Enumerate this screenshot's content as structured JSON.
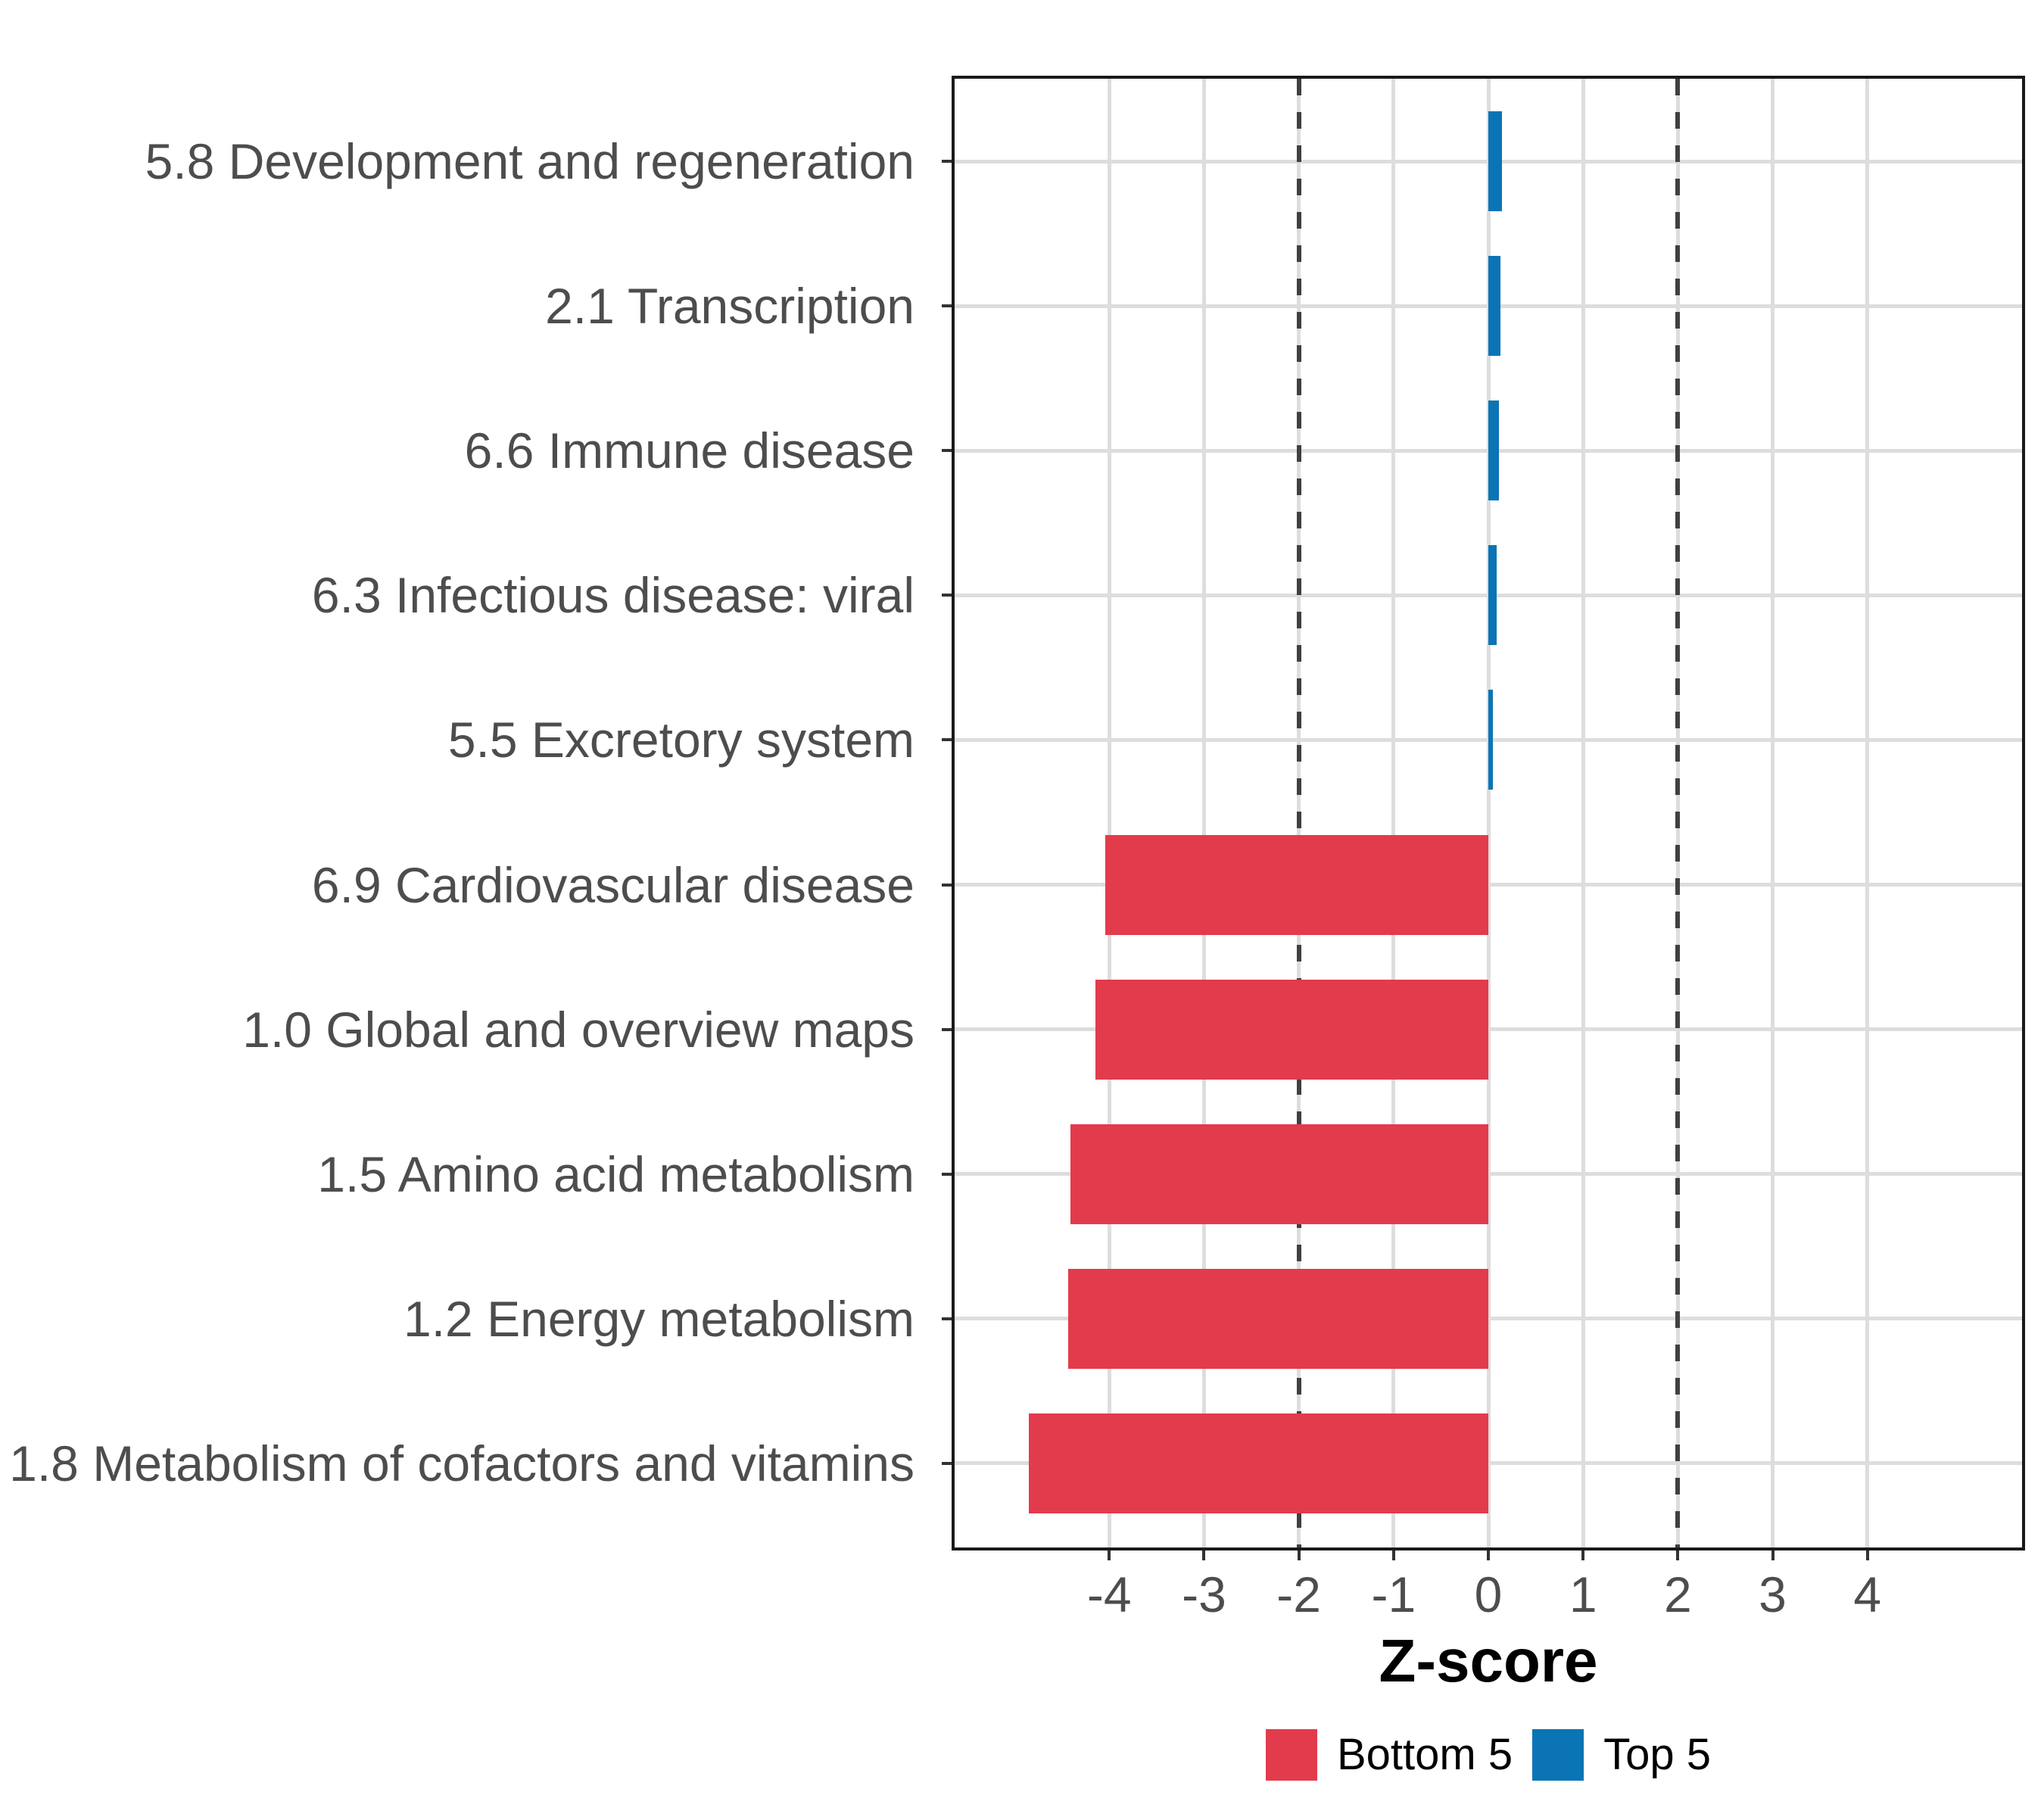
{
  "chart_data": {
    "type": "bar",
    "orientation": "horizontal",
    "xlabel": "Z-score",
    "x_tick_labels": [
      "-4",
      "-3",
      "-2",
      "-1",
      "0",
      "1",
      "2",
      "3",
      "4"
    ],
    "x_ticks": [
      -4,
      -3,
      -2,
      -1,
      0,
      1,
      2,
      3,
      4
    ],
    "xlim": [
      -5.66,
      5.66
    ],
    "reference_lines": [
      -2,
      2
    ],
    "grid": true,
    "categories": [
      "5.8 Development and regeneration",
      "2.1 Transcription",
      "6.6 Immune disease",
      "6.3 Infectious disease: viral",
      "5.5 Excretory system",
      "6.9 Cardiovascular disease",
      "1.0 Global and overview maps",
      "1.5 Amino acid metabolism",
      "1.2 Energy metabolism",
      "1.8 Metabolism of cofactors and vitamins"
    ],
    "values": [
      0.14,
      0.13,
      0.11,
      0.09,
      0.05,
      -4.04,
      -4.15,
      -4.41,
      -4.43,
      -4.85
    ],
    "groups": [
      "Top 5",
      "Top 5",
      "Top 5",
      "Top 5",
      "Top 5",
      "Bottom 5",
      "Bottom 5",
      "Bottom 5",
      "Bottom 5",
      "Bottom 5"
    ],
    "legend_position": "bottom"
  },
  "legend": {
    "items": [
      {
        "label": "Bottom 5",
        "color": "#e23b4c"
      },
      {
        "label": "Top 5",
        "color": "#0b74b5"
      }
    ]
  },
  "colors": {
    "bottom5": "#e23b4c",
    "top5": "#0b74b5",
    "gridline": "#dddddd",
    "reference_line": "#404040",
    "axis_text": "#4d4d4d",
    "tick_mark": "#333333",
    "panel_border": "#1a1a1a"
  }
}
